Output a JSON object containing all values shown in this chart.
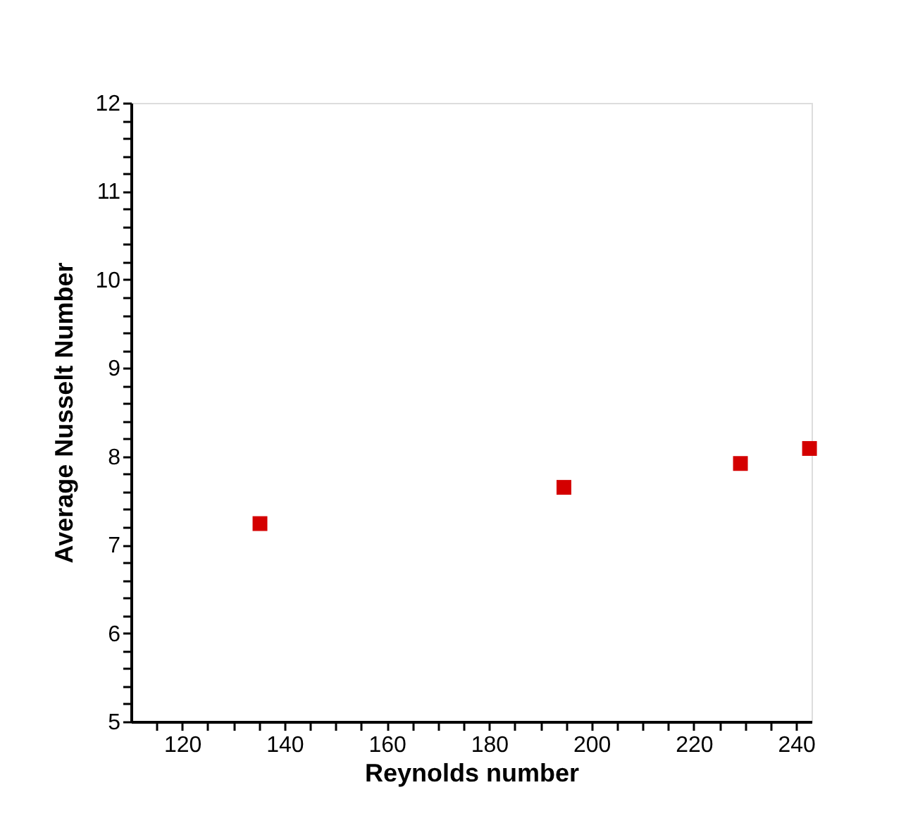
{
  "chart_data": {
    "type": "scatter",
    "xlabel": "Reynolds number",
    "ylabel": "Average Nusselt Number",
    "xlim": [
      110,
      243
    ],
    "ylim": [
      5,
      12
    ],
    "xticks": [
      {
        "value": 115,
        "label": null
      },
      120,
      {
        "value": 125,
        "label": null
      },
      {
        "value": 130,
        "label": null
      },
      {
        "value": 135,
        "label": null
      },
      140,
      {
        "value": 145,
        "label": null
      },
      {
        "value": 150,
        "label": null
      },
      {
        "value": 155,
        "label": null
      },
      160,
      {
        "value": 165,
        "label": null
      },
      {
        "value": 170,
        "label": null
      },
      {
        "value": 175,
        "label": null
      },
      180,
      {
        "value": 185,
        "label": null
      },
      {
        "value": 190,
        "label": null
      },
      {
        "value": 195,
        "label": null
      },
      200,
      {
        "value": 205,
        "label": null
      },
      {
        "value": 210,
        "label": null
      },
      {
        "value": 215,
        "label": null
      },
      220,
      {
        "value": 225,
        "label": null
      },
      {
        "value": 230,
        "label": null
      },
      {
        "value": 235,
        "label": null
      },
      240
    ],
    "yticks": [
      5,
      {
        "value": 5.2,
        "label": null
      },
      {
        "value": 5.4,
        "label": null
      },
      {
        "value": 5.6,
        "label": null
      },
      {
        "value": 5.8,
        "label": null
      },
      6,
      {
        "value": 6.2,
        "label": null
      },
      {
        "value": 6.4,
        "label": null
      },
      {
        "value": 6.6,
        "label": null
      },
      {
        "value": 6.8,
        "label": null
      },
      7,
      {
        "value": 7.2,
        "label": null
      },
      {
        "value": 7.4,
        "label": null
      },
      {
        "value": 7.6,
        "label": null
      },
      {
        "value": 7.8,
        "label": null
      },
      8,
      {
        "value": 8.2,
        "label": null
      },
      {
        "value": 8.4,
        "label": null
      },
      {
        "value": 8.6,
        "label": null
      },
      {
        "value": 8.8,
        "label": null
      },
      9,
      {
        "value": 9.2,
        "label": null
      },
      {
        "value": 9.4,
        "label": null
      },
      {
        "value": 9.6,
        "label": null
      },
      {
        "value": 9.8,
        "label": null
      },
      10,
      {
        "value": 10.2,
        "label": null
      },
      {
        "value": 10.4,
        "label": null
      },
      {
        "value": 10.6,
        "label": null
      },
      {
        "value": 10.8,
        "label": null
      },
      11,
      {
        "value": 11.2,
        "label": null
      },
      {
        "value": 11.4,
        "label": null
      },
      {
        "value": 11.6,
        "label": null
      },
      {
        "value": 11.8,
        "label": null
      },
      12
    ],
    "marker": "square",
    "grid": false,
    "legend": false,
    "series": [
      {
        "color": "#d40000",
        "x": [
          135.2,
          194.6,
          229.1,
          242.6
        ],
        "values": [
          7.24,
          7.65,
          7.92,
          8.09
        ]
      }
    ]
  }
}
